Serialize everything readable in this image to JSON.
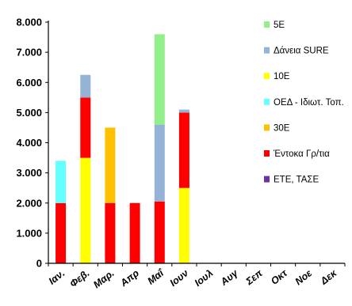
{
  "chart_data": {
    "type": "bar",
    "stacked": true,
    "categories": [
      "Ιαν.",
      "Φεβ.",
      "Μαρ.",
      "Απρ",
      "Μαΐ",
      "Ιουν",
      "Ιουλ",
      "Αυγ",
      "Σεπ",
      "Οκτ",
      "Νοε",
      "Δεκ"
    ],
    "ylim": [
      0,
      8000
    ],
    "yticks": [
      "0",
      "1.000",
      "2.000",
      "3.000",
      "4.000",
      "5.000",
      "6.000",
      "7.000",
      "8.000"
    ],
    "ytick_values": [
      0,
      1000,
      2000,
      3000,
      4000,
      5000,
      6000,
      7000,
      8000
    ],
    "grid": false,
    "legend_position": "right",
    "series": [
      {
        "name": "ΕΤΕ, ΤΑΣΕ",
        "color": "#7030a0",
        "values": [
          0,
          0,
          0,
          0,
          0,
          0,
          0,
          0,
          0,
          0,
          0,
          0
        ]
      },
      {
        "name": "Έντοκα Γρ/τια",
        "color": "#ff0000",
        "values": [
          2000,
          2000,
          2000,
          2000,
          2050,
          2500,
          0,
          0,
          0,
          0,
          0,
          0
        ]
      },
      {
        "name": "30Ε",
        "color": "#ffc000",
        "values": [
          0,
          0,
          2500,
          0,
          0,
          0,
          0,
          0,
          0,
          0,
          0,
          0
        ]
      },
      {
        "name": "ΟΕΔ - Ιδιωτ. Τοπ.",
        "color": "#66ffff",
        "values": [
          1400,
          0,
          0,
          0,
          0,
          0,
          0,
          0,
          0,
          0,
          0,
          0
        ]
      },
      {
        "name": "10Ε",
        "color": "#ffff00",
        "values": [
          0,
          3500,
          0,
          0,
          0,
          2500,
          0,
          0,
          0,
          0,
          0,
          0
        ]
      },
      {
        "name": "Δάνεια SURE",
        "color": "#95b3d7",
        "values": [
          0,
          750,
          0,
          0,
          2550,
          100,
          0,
          0,
          0,
          0,
          0,
          0
        ]
      },
      {
        "name": "5Ε",
        "color": "#92f08a",
        "values": [
          0,
          0,
          0,
          0,
          3000,
          0,
          0,
          0,
          0,
          0,
          0,
          0
        ]
      }
    ],
    "stack_order": [
      "10Ε",
      "Έντοκα Γρ/τια",
      "30Ε",
      "ΟΕΔ - Ιδιωτ. Τοπ.",
      "Δάνεια SURE",
      "5Ε",
      "ΕΤΕ, ΤΑΣΕ"
    ],
    "legend_order": [
      "5Ε",
      "Δάνεια SURE",
      "10Ε",
      "ΟΕΔ - Ιδιωτ. Τοπ.",
      "30Ε",
      "Έντοκα Γρ/τια",
      "ΕΤΕ, ΤΑΣΕ"
    ]
  }
}
